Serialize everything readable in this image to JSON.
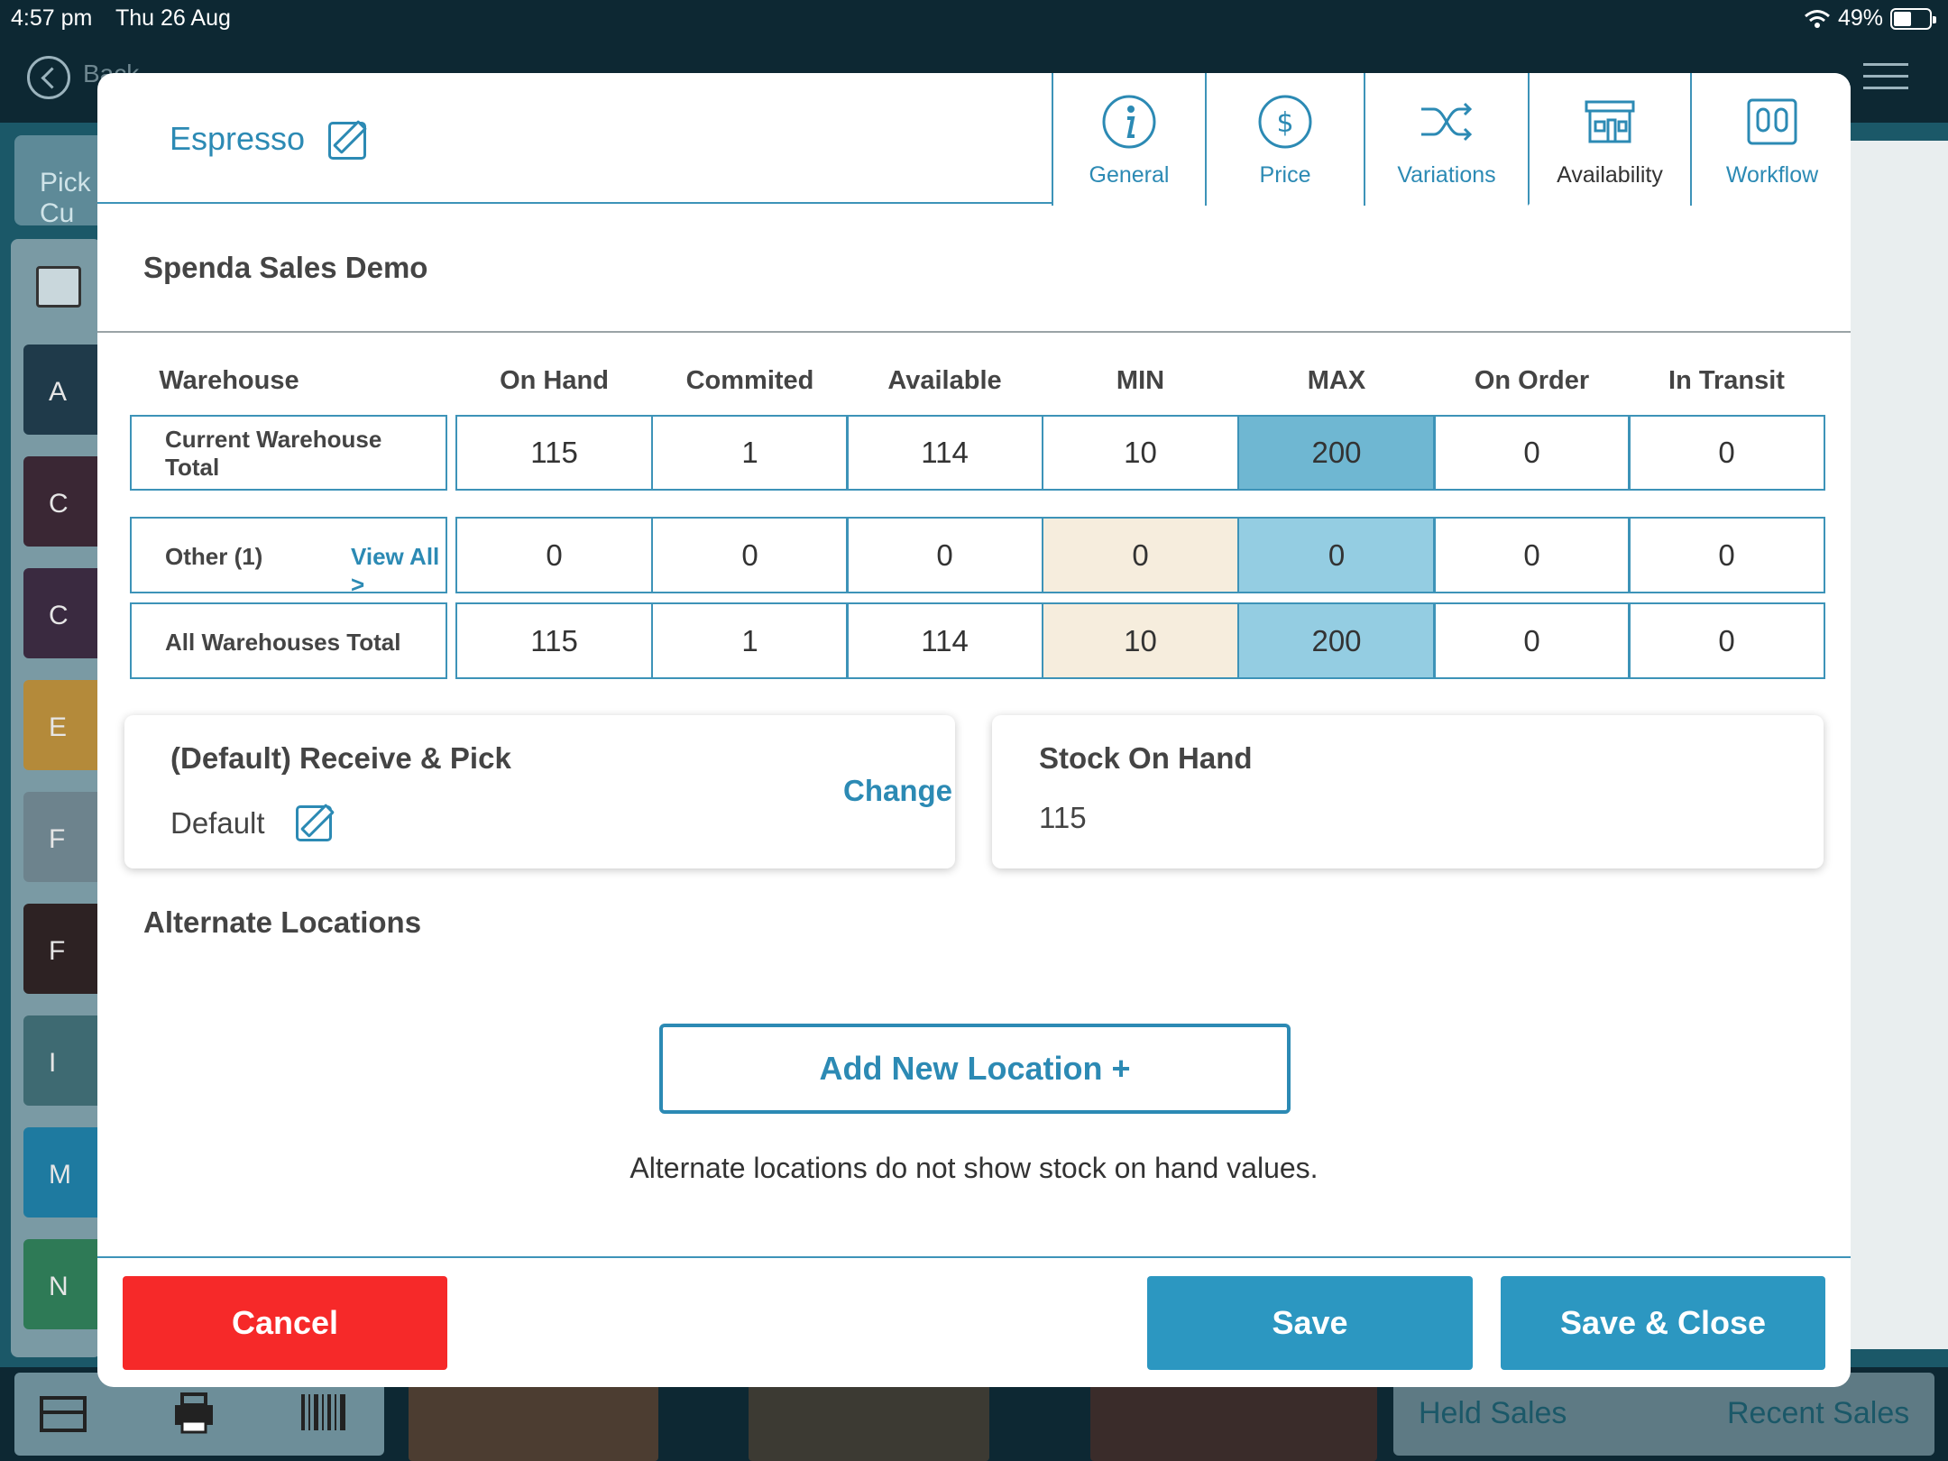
{
  "status_bar": {
    "time": "4:57 pm",
    "date": "Thu 26 Aug",
    "battery": "49%",
    "battery_level": 0.49
  },
  "background": {
    "back_label": "Back",
    "pick_label": "Pick Cu",
    "letters": [
      "A",
      "C",
      "C",
      "E",
      "F",
      "F",
      "I",
      "M",
      "N"
    ],
    "letter_colors": [
      "#1f3a4a",
      "#3a2734",
      "#3a2a40",
      "#b48a3a",
      "#6d838d",
      "#2d2223",
      "#3e6a72",
      "#1e7aa0",
      "#2e7a56"
    ],
    "held_sales": "Held Sales",
    "recent_sales": "Recent Sales"
  },
  "modal": {
    "product_name": "Espresso",
    "tabs": [
      {
        "label": "General",
        "icon": "info-icon",
        "active": false
      },
      {
        "label": "Price",
        "icon": "dollar-icon",
        "active": false
      },
      {
        "label": "Variations",
        "icon": "shuffle-icon",
        "active": false
      },
      {
        "label": "Availability",
        "icon": "store-icon",
        "active": true
      },
      {
        "label": "Workflow",
        "icon": "workflow-icon",
        "active": false
      }
    ],
    "company": "Spenda Sales Demo",
    "table": {
      "headers": [
        "Warehouse",
        "On Hand",
        "Commited",
        "Available",
        "MIN",
        "MAX",
        "On Order",
        "In Transit"
      ],
      "rows": [
        {
          "label": "Current Warehouse Total",
          "values": [
            "115",
            "1",
            "114",
            "10",
            "200",
            "0",
            "0"
          ]
        },
        {
          "label": "Other (1)",
          "link": "View All >",
          "values": [
            "0",
            "0",
            "0",
            "0",
            "0",
            "0",
            "0"
          ]
        },
        {
          "label": "All Warehouses Total",
          "values": [
            "115",
            "1",
            "114",
            "10",
            "200",
            "0",
            "0"
          ]
        }
      ]
    },
    "receive_card": {
      "title": "(Default) Receive & Pick",
      "value": "Default",
      "action": "Change"
    },
    "stock_card": {
      "title": "Stock On Hand",
      "value": "115"
    },
    "alternate_locations": {
      "title": "Alternate Locations",
      "add_button": "Add New Location +",
      "note": "Alternate locations do not show stock on hand values."
    },
    "footer": {
      "cancel": "Cancel",
      "save": "Save",
      "save_close": "Save & Close"
    },
    "colors": {
      "accent": "#2c8ab4",
      "cancel": "#f62929",
      "save": "#2c97c1",
      "min_highlight": "#f6eddd",
      "max_highlight": "#94cde2"
    }
  }
}
